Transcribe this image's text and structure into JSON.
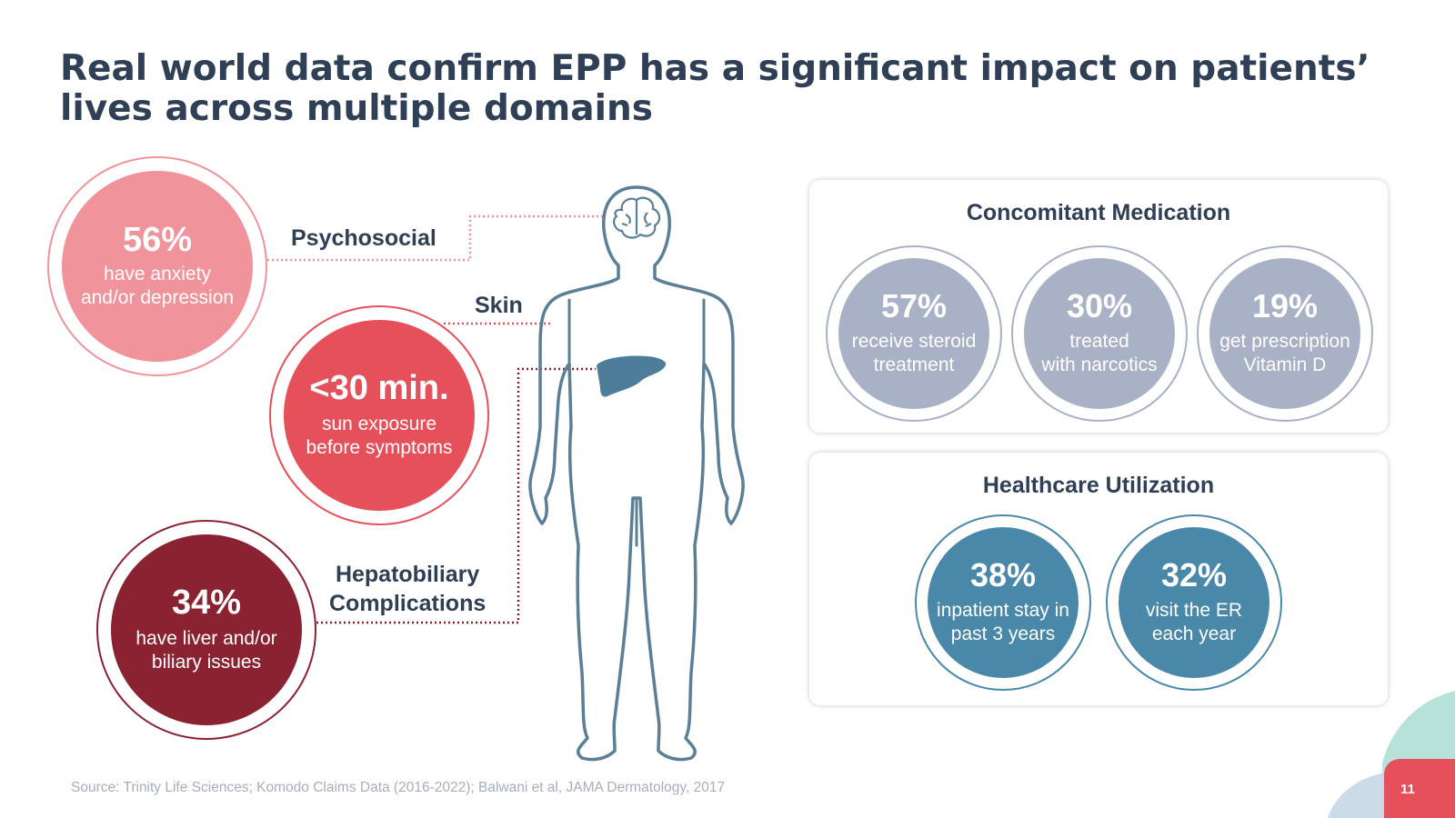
{
  "title": {
    "line1": "Real world data confirm EPP has a significant impact on patients’",
    "line2": "lives across multiple domains"
  },
  "domains": {
    "psychosocial": {
      "label": "Psychosocial",
      "value": "56%",
      "line1": "have anxiety",
      "line2": "and/or depression"
    },
    "skin": {
      "label": "Skin",
      "value": "<30 min.",
      "line1": "sun exposure",
      "line2": "before symptoms"
    },
    "hepatobiliary": {
      "label_line1": "Hepatobiliary",
      "label_line2": "Complications",
      "value": "34%",
      "line1": "have liver and/or",
      "line2": "biliary issues"
    }
  },
  "concomitant": {
    "title": "Concomitant Medication",
    "items": [
      {
        "value": "57%",
        "line1": "receive steroid",
        "line2": "treatment"
      },
      {
        "value": "30%",
        "line1": "treated",
        "line2": "with narcotics"
      },
      {
        "value": "19%",
        "line1": "get prescription",
        "line2": "Vitamin D"
      }
    ]
  },
  "healthcare": {
    "title": "Healthcare Utilization",
    "items": [
      {
        "value": "38%",
        "line1": "inpatient stay in",
        "line2": "past 3 years"
      },
      {
        "value": "32%",
        "line1": "visit the ER",
        "line2": "each year"
      }
    ]
  },
  "source": "Source: Trinity Life Sciences; Komodo Claims Data (2016-2022); Balwani et al, JAMA Dermatology, 2017",
  "page_number": "11",
  "colors": {
    "title": "#2f3f55",
    "psychosocial": "#f1939a",
    "skin": "#e6505a",
    "hepatobiliary": "#8b2232",
    "medication": "#a9b1c6",
    "healthcare": "#4a88aa",
    "body_outline": "#5b7f96",
    "liver": "#4d7d9a"
  }
}
